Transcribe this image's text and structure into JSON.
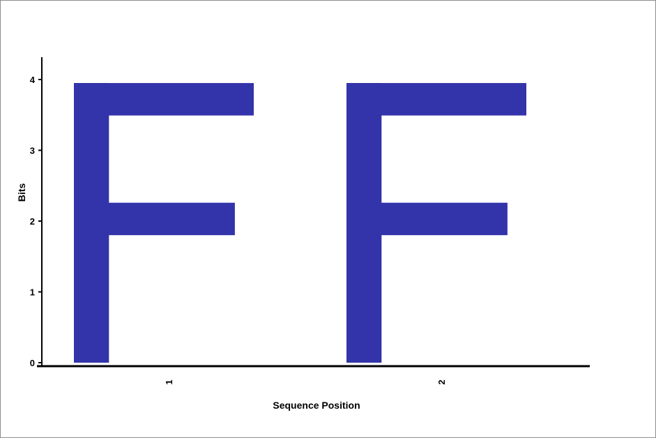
{
  "chart_data": {
    "type": "sequence-logo",
    "xlabel": "Sequence Position",
    "ylabel": "Bits",
    "ylim": [
      0,
      4.05
    ],
    "yticks": [
      "0",
      "1",
      "2",
      "3",
      "4"
    ],
    "positions": [
      {
        "label": "1",
        "letters": [
          {
            "letter": "F",
            "bits": 3.95
          }
        ]
      },
      {
        "label": "2",
        "letters": [
          {
            "letter": "F",
            "bits": 3.95
          }
        ]
      }
    ],
    "colors": {
      "F": "#3333aa",
      "axis": "#000000"
    }
  }
}
